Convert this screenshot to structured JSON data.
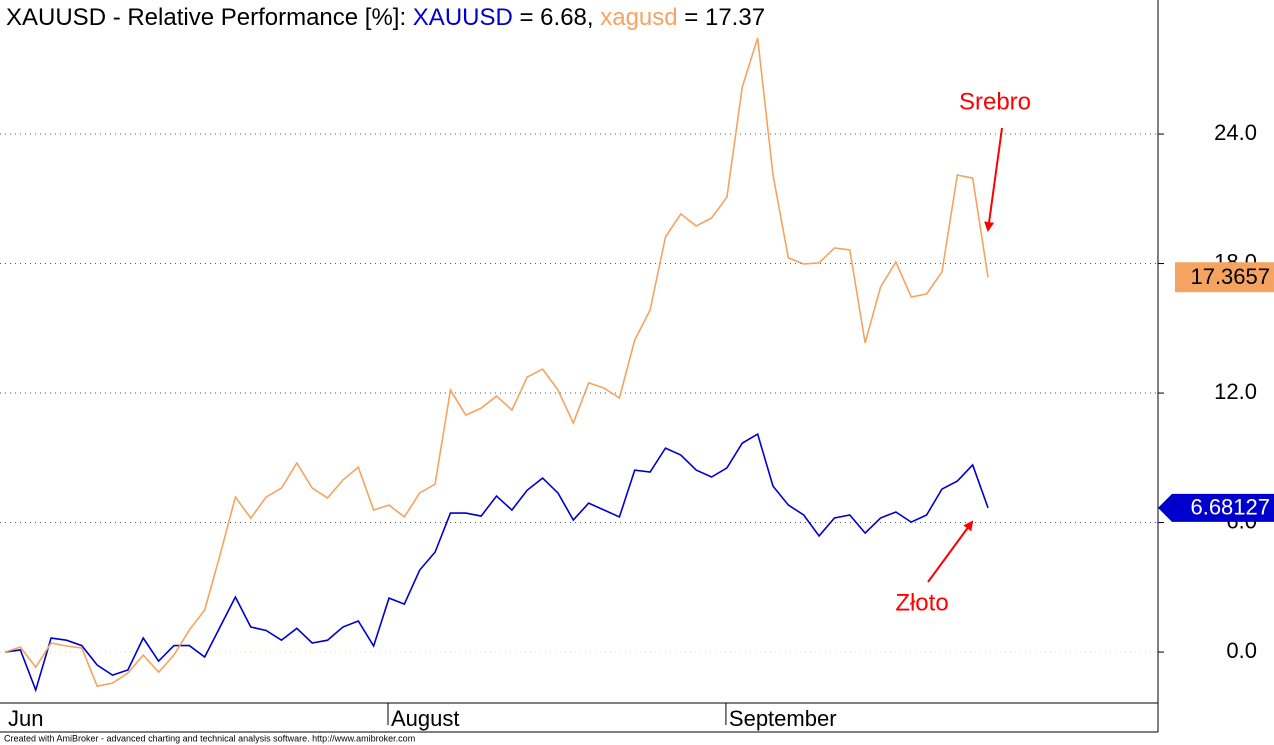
{
  "chart_data": {
    "type": "line",
    "title": "XAUUSD - Relative Performance [%]:",
    "categories": [
      "Jun",
      null,
      null,
      null,
      null,
      null,
      null,
      null,
      null,
      null,
      null,
      null,
      null,
      null,
      null,
      null,
      null,
      null,
      null,
      null,
      null,
      null,
      null,
      null,
      null,
      "August",
      null,
      null,
      null,
      null,
      null,
      null,
      null,
      null,
      null,
      null,
      null,
      null,
      null,
      null,
      null,
      null,
      null,
      null,
      null,
      null,
      null,
      "September",
      null,
      null,
      null,
      null,
      null,
      null,
      null,
      null,
      null,
      null,
      null,
      null,
      null,
      null,
      null,
      null,
      null
    ],
    "series": [
      {
        "name": "XAUUSD",
        "color": "#0000cd",
        "legend_value": "= 6.68,",
        "tag_label": "6.68127",
        "values": [
          0,
          0.1,
          -1.76,
          0.65,
          0.55,
          0.3,
          -0.6,
          -1.07,
          -0.83,
          0.65,
          -0.42,
          0.3,
          0.3,
          -0.23,
          1.16,
          2.55,
          1.16,
          1.0,
          0.55,
          1.1,
          0.42,
          0.55,
          1.16,
          1.44,
          0.28,
          2.5,
          2.22,
          3.8,
          4.63,
          6.44,
          6.44,
          6.3,
          7.23,
          6.58,
          7.5,
          8.06,
          7.37,
          6.12,
          6.9,
          6.58,
          6.26,
          8.43,
          8.34,
          9.45,
          9.13,
          8.43,
          8.11,
          8.53,
          9.68,
          10.1,
          7.69,
          6.81,
          6.35,
          5.38,
          6.21,
          6.35,
          5.51,
          6.21,
          6.49,
          6.02,
          6.35,
          7.55,
          7.92,
          8.67,
          6.68127
        ]
      },
      {
        "name": "xagusd",
        "color": "#f4a460",
        "legend_value": "= 17.37",
        "tag_label": "17.3657",
        "values": [
          0,
          0.23,
          -0.7,
          0.42,
          0.28,
          0.19,
          -1.58,
          -1.44,
          -0.97,
          -0.14,
          -0.93,
          -0.14,
          1.02,
          1.95,
          4.5,
          7.18,
          6.2,
          7.18,
          7.6,
          8.76,
          7.6,
          7.14,
          7.97,
          8.57,
          6.58,
          6.81,
          6.26,
          7.37,
          7.78,
          12.14,
          10.98,
          11.3,
          11.86,
          11.21,
          12.74,
          13.11,
          12.14,
          10.61,
          12.47,
          12.23,
          11.77,
          14.46,
          15.85,
          19.23,
          20.3,
          19.74,
          20.11,
          21.08,
          26.18,
          28.45,
          22.1,
          18.26,
          17.98,
          18.03,
          18.72,
          18.63,
          14.32,
          16.91,
          18.07,
          16.45,
          16.59,
          17.61,
          22.1,
          21.96,
          17.3657
        ]
      }
    ],
    "ylim": [
      -2.36,
      30.21
    ],
    "yticks": [
      {
        "value": 0,
        "label": "0.0"
      },
      {
        "value": 6,
        "label": "6.0"
      },
      {
        "value": 12,
        "label": "12.0"
      },
      {
        "value": 18,
        "label": "18.0"
      },
      {
        "value": 24,
        "label": "24.0"
      }
    ],
    "grid": true,
    "annotations": [
      {
        "text": "Srebro",
        "color": "#ff0000"
      },
      {
        "text": "Złoto",
        "color": "#ff0000"
      }
    ],
    "footer": "Created with AmiBroker - advanced charting and technical analysis software. http://www.amibroker.com"
  }
}
